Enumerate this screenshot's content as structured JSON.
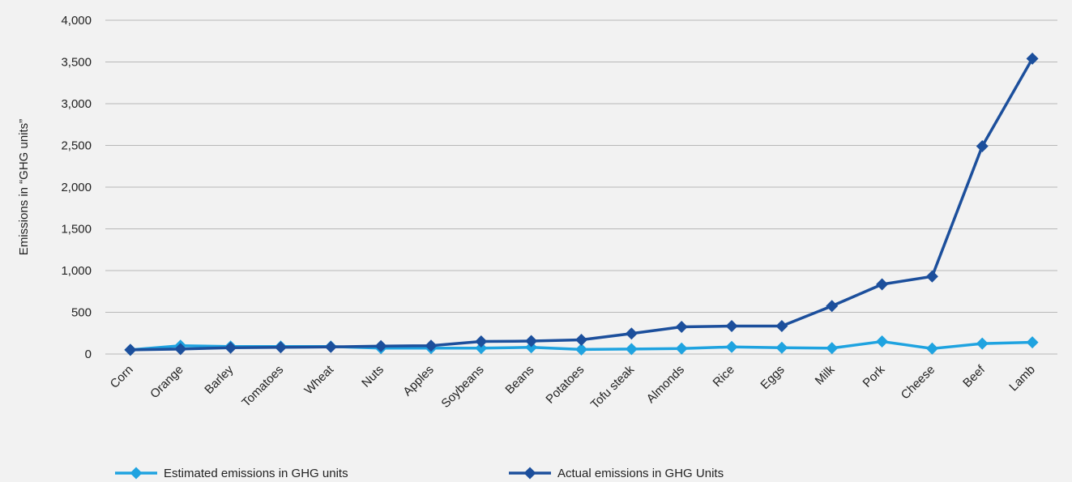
{
  "chart_data": {
    "type": "line",
    "title": "",
    "xlabel": "",
    "ylabel": "Emissions in “GHG units”",
    "ylim": [
      0,
      4000
    ],
    "yticks": [
      0,
      500,
      1000,
      1500,
      2000,
      2500,
      3000,
      3500,
      4000
    ],
    "ytick_labels": [
      "0",
      "500",
      "1,000",
      "1,500",
      "2,000",
      "2,500",
      "3,000",
      "3,500",
      "4,000"
    ],
    "grid": true,
    "legend_position": "bottom",
    "categories": [
      "Corn",
      "Orange",
      "Barley",
      "Tomatoes",
      "Wheat",
      "Nuts",
      "Apples",
      "Soybeans",
      "Beans",
      "Potatoes",
      "Tofu steak",
      "Almonds",
      "Rice",
      "Eggs",
      "Milk",
      "Pork",
      "Cheese",
      "Beef",
      "Lamb"
    ],
    "series": [
      {
        "name": "Estimated emissions in GHG units",
        "color": "#1fa3e0",
        "marker": "diamond",
        "values": [
          50,
          100,
          90,
          90,
          90,
          70,
          70,
          70,
          80,
          55,
          60,
          65,
          85,
          75,
          70,
          150,
          65,
          125,
          140
        ]
      },
      {
        "name": "Actual emissions in GHG Units",
        "color": "#1c4f9c",
        "marker": "diamond",
        "values": [
          50,
          60,
          75,
          80,
          85,
          95,
          100,
          150,
          155,
          170,
          245,
          325,
          335,
          335,
          575,
          835,
          930,
          2490,
          3540
        ]
      }
    ]
  }
}
